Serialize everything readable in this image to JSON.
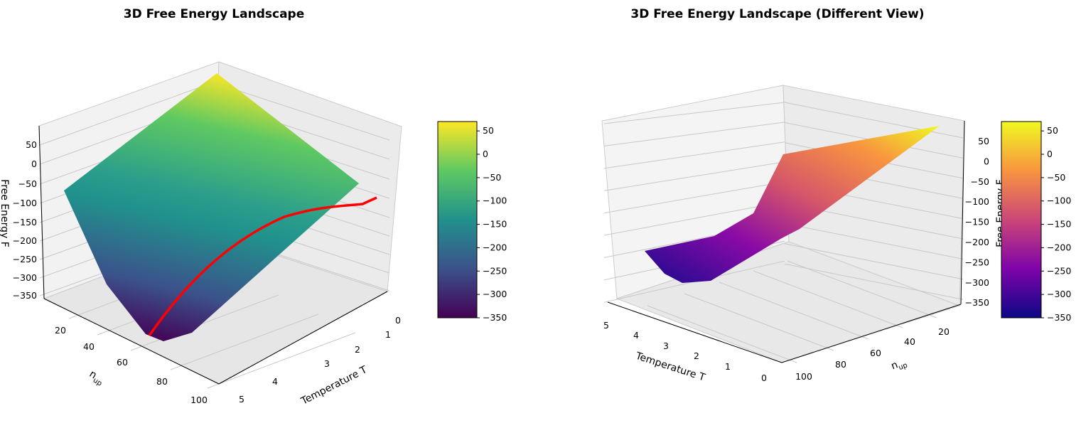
{
  "chart_data": [
    {
      "type": "surface",
      "title": "3D Free Energy Landscape",
      "xlabel": "Temperature T",
      "ylabel": "n_up",
      "ylabel_main": "n",
      "ylabel_sub": "up",
      "zlabel": "Free Energy F",
      "x_ticks": [
        "0",
        "1",
        "2",
        "3",
        "4",
        "5"
      ],
      "y_ticks": [
        "20",
        "40",
        "60",
        "80",
        "100"
      ],
      "z_ticks": [
        "50",
        "0",
        "−50",
        "−100",
        "−150",
        "−200",
        "−250",
        "−300",
        "−350"
      ],
      "zlim": [
        -350,
        70
      ],
      "colormap": "viridis",
      "colorbar_ticks": [
        "50",
        "0",
        "−50",
        "−100",
        "−150",
        "−200",
        "−250",
        "−300",
        "−350"
      ],
      "minimum_path_color": "#ff0000"
    },
    {
      "type": "surface",
      "title": "3D Free Energy Landscape (Different View)",
      "xlabel": "Temperature T",
      "ylabel": "n_up",
      "ylabel_main": "n",
      "ylabel_sub": "up",
      "zlabel": "Free Energy F",
      "x_ticks": [
        "5",
        "4",
        "3",
        "2",
        "1",
        "0"
      ],
      "y_ticks": [
        "20",
        "40",
        "60",
        "80",
        "100"
      ],
      "z_ticks": [
        "50",
        "0",
        "−50",
        "−100",
        "−150",
        "−200",
        "−250",
        "−300",
        "−350"
      ],
      "zlim": [
        -350,
        70
      ],
      "colormap": "plasma",
      "colorbar_ticks": [
        "50",
        "0",
        "−50",
        "−100",
        "−150",
        "−200",
        "−250",
        "−300",
        "−350"
      ]
    }
  ]
}
